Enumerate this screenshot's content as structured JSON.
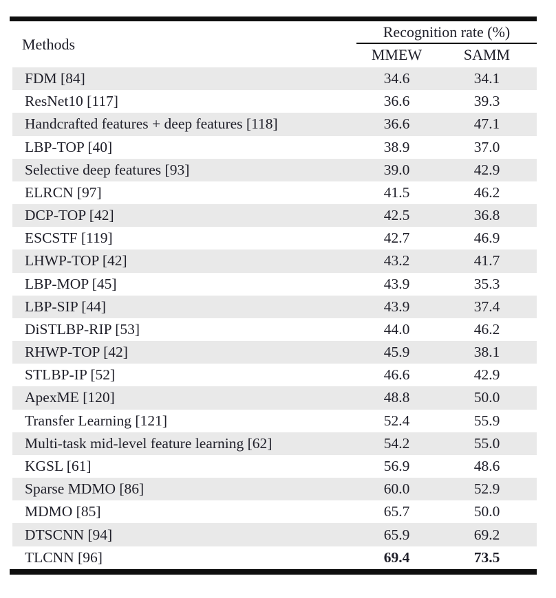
{
  "table": {
    "methods_header": "Methods",
    "group_header": "Recognition rate (%)",
    "sub_headers": [
      "MMEW",
      "SAMM"
    ],
    "rows": [
      {
        "method": "FDM [84]",
        "mmew": "34.6",
        "samm": "34.1"
      },
      {
        "method": "ResNet10 [117]",
        "mmew": "36.6",
        "samm": "39.3"
      },
      {
        "method": "Handcrafted features + deep features [118]",
        "mmew": "36.6",
        "samm": "47.1"
      },
      {
        "method": "LBP-TOP [40]",
        "mmew": "38.9",
        "samm": "37.0"
      },
      {
        "method": "Selective deep features [93]",
        "mmew": "39.0",
        "samm": "42.9"
      },
      {
        "method": "ELRCN [97]",
        "mmew": "41.5",
        "samm": "46.2"
      },
      {
        "method": "DCP-TOP [42]",
        "mmew": "42.5",
        "samm": "36.8"
      },
      {
        "method": "ESCSTF [119]",
        "mmew": "42.7",
        "samm": "46.9"
      },
      {
        "method": "LHWP-TOP [42]",
        "mmew": "43.2",
        "samm": "41.7"
      },
      {
        "method": "LBP-MOP [45]",
        "mmew": "43.9",
        "samm": "35.3"
      },
      {
        "method": "LBP-SIP [44]",
        "mmew": "43.9",
        "samm": "37.4"
      },
      {
        "method": "DiSTLBP-RIP [53]",
        "mmew": "44.0",
        "samm": "46.2"
      },
      {
        "method": "RHWP-TOP [42]",
        "mmew": "45.9",
        "samm": "38.1"
      },
      {
        "method": "STLBP-IP [52]",
        "mmew": "46.6",
        "samm": "42.9"
      },
      {
        "method": "ApexME [120]",
        "mmew": "48.8",
        "samm": "50.0"
      },
      {
        "method": "Transfer Learning [121]",
        "mmew": "52.4",
        "samm": "55.9"
      },
      {
        "method": "Multi-task mid-level feature learning [62]",
        "mmew": "54.2",
        "samm": "55.0"
      },
      {
        "method": "KGSL [61]",
        "mmew": "56.9",
        "samm": "48.6"
      },
      {
        "method": "Sparse MDMO [86]",
        "mmew": "60.0",
        "samm": "52.9"
      },
      {
        "method": "MDMO [85]",
        "mmew": "65.7",
        "samm": "50.0"
      },
      {
        "method": "DTSCNN [94]",
        "mmew": "65.9",
        "samm": "69.2"
      },
      {
        "method": "TLCNN [96]",
        "mmew": "69.4",
        "samm": "73.5",
        "bold_values": true
      }
    ],
    "colors": {
      "stripe": "#e9e9e9",
      "rule": "#0f0f0f",
      "text": "#20202a"
    }
  }
}
